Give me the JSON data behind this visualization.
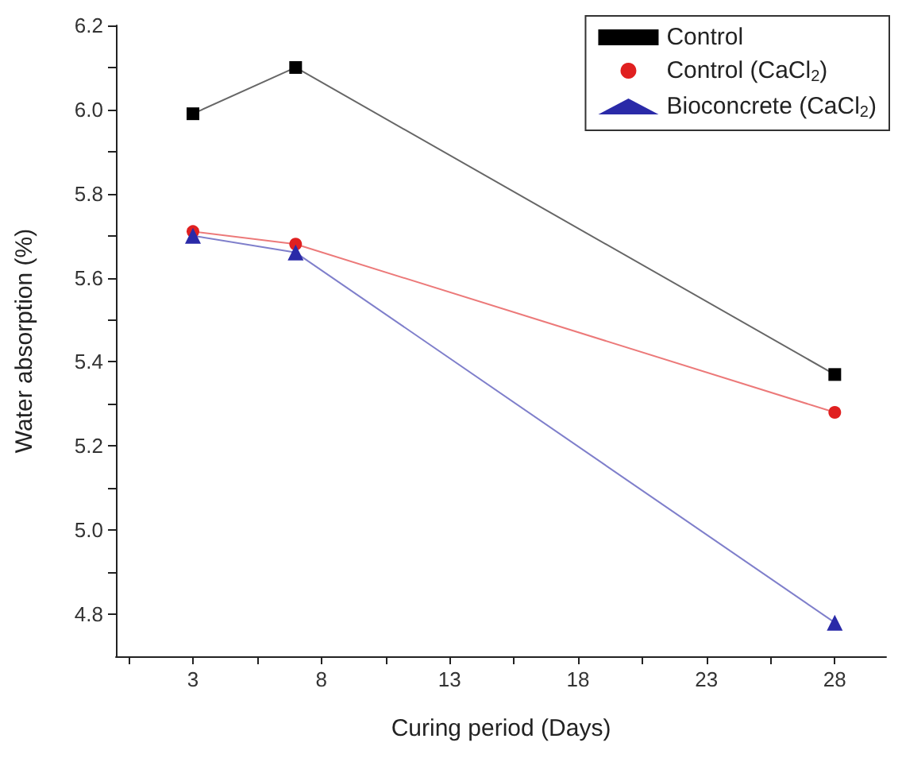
{
  "chart_data": {
    "type": "line",
    "xlabel": "Curing period (Days)",
    "ylabel": "Water absorption (%)",
    "xlim": [
      0,
      30
    ],
    "xticks": [
      {
        "value": 0.5,
        "label": null
      },
      3,
      {
        "value": 5.5,
        "label": null
      },
      8,
      {
        "value": 10.5,
        "label": null
      },
      13,
      {
        "value": 15.5,
        "label": null
      },
      18,
      {
        "value": 20.5,
        "label": null
      },
      23,
      {
        "value": 25.5,
        "label": null
      },
      28
    ],
    "ylim": [
      4.7,
      6.2
    ],
    "yticks": [
      4.8,
      {
        "value": 4.9,
        "label": null
      },
      {
        "value": 5.0,
        "label": "5.0"
      },
      {
        "value": 5.1,
        "label": null
      },
      5.2,
      {
        "value": 5.3,
        "label": null
      },
      5.4,
      {
        "value": 5.5,
        "label": null
      },
      5.6,
      {
        "value": 5.7,
        "label": null
      },
      5.8,
      {
        "value": 5.9,
        "label": null
      },
      {
        "value": 6.0,
        "label": "6.0"
      },
      {
        "value": 6.1,
        "label": null
      },
      6.2
    ],
    "x": [
      3,
      7,
      28
    ],
    "series": [
      {
        "name": "Control",
        "color": "#000000",
        "marker": "square",
        "values": [
          5.99,
          6.1,
          5.37
        ]
      },
      {
        "name": "Control (CaCl$_{2}$)",
        "color": "#e02020",
        "marker": "circle",
        "values": [
          5.71,
          5.68,
          5.28
        ]
      },
      {
        "name": "Bioconcrete (CaCl$_{2}$)",
        "color": "#2a2aa8",
        "marker": "triangle",
        "values": [
          5.7,
          5.66,
          4.78
        ]
      }
    ],
    "legend": "top right",
    "grid": false,
    "line_style": "solid"
  }
}
